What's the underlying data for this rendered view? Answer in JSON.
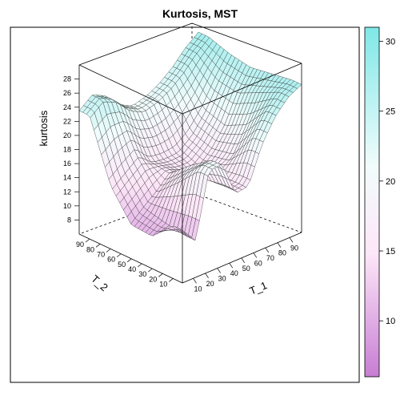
{
  "chart_data": {
    "type": "surface3d",
    "title": "Kurtosis, MST",
    "xlabel": "T_1",
    "ylabel": "T_2",
    "zlabel": "kurtosis",
    "x_ticks": [
      "10",
      "20",
      "30",
      "40",
      "50",
      "60",
      "70",
      "80",
      "90"
    ],
    "y_ticks": [
      "10",
      "20",
      "30",
      "40",
      "50",
      "60",
      "70",
      "80",
      "90"
    ],
    "z_ticks": [
      "8",
      "10",
      "12",
      "14",
      "16",
      "18",
      "20",
      "22",
      "24",
      "26",
      "28"
    ],
    "xlim": [
      1,
      100
    ],
    "ylim": [
      1,
      100
    ],
    "zlim": [
      6,
      30
    ],
    "colorkey": {
      "ticks": [
        "10",
        "15",
        "20",
        "25",
        "30"
      ],
      "range": [
        6,
        31
      ],
      "colors": [
        "#c77dd3",
        "#fde6f8",
        "#f2fcfc",
        "#7fe7e7"
      ]
    },
    "series": [
      {
        "values_by_T2": [
          {
            "T_2": 10,
            "kurtosis": [
              13.5,
              11.2,
              20.3,
              20.5,
              15.5,
              15.8,
              20.8,
              24.0,
              26.0,
              27.0
            ]
          },
          {
            "T_2": 30,
            "kurtosis": [
              10.6,
              11.8,
              17.0,
              18.5,
              15.2,
              15.8,
              17.0,
              20.5,
              24.5,
              26.5
            ]
          },
          {
            "T_2": 50,
            "kurtosis": [
              10.8,
              12.5,
              14.0,
              16.0,
              15.0,
              14.8,
              16.5,
              19.0,
              23.0,
              26.0
            ]
          },
          {
            "T_2": 70,
            "kurtosis": [
              15.0,
              16.5,
              18.0,
              16.0,
              15.8,
              16.0,
              17.5,
              20.0,
              23.5,
              26.5
            ]
          },
          {
            "T_2": 90,
            "kurtosis": [
              23.5,
              25.0,
              24.0,
              22.0,
              21.0,
              21.5,
              22.5,
              24.0,
              26.0,
              27.5
            ]
          }
        ]
      }
    ]
  }
}
